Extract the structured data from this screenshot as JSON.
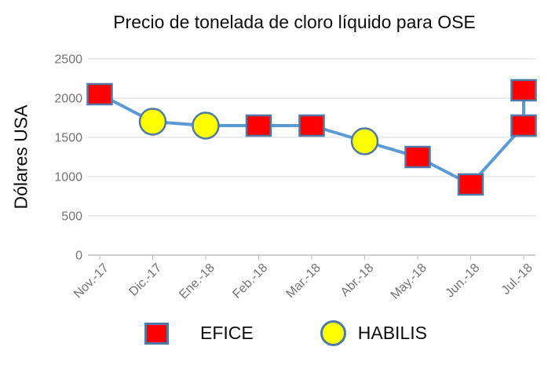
{
  "chart_data": {
    "type": "line",
    "title": "Precio de tonelada de cloro líquido para OSE",
    "ylabel": "Dólares USA",
    "xlabel": "",
    "ylim": [
      0,
      2500
    ],
    "yticks": [
      0,
      500,
      1000,
      1500,
      2000,
      2500
    ],
    "categories": [
      "Nov.-17",
      "Dic.-17",
      "Ene.-18",
      "Feb.-18",
      "Mar.-18",
      "Abr.-18",
      "May.-18",
      "Jun.-18",
      "Jul.-18"
    ],
    "grid": true,
    "legend_position": "bottom",
    "points": [
      {
        "category": "Nov.-17",
        "value": 2050,
        "supplier": "EFICE"
      },
      {
        "category": "Dic.-17",
        "value": 1700,
        "supplier": "HABILIS"
      },
      {
        "category": "Ene.-18",
        "value": 1650,
        "supplier": "HABILIS"
      },
      {
        "category": "Feb.-18",
        "value": 1650,
        "supplier": "EFICE"
      },
      {
        "category": "Mar.-18",
        "value": 1650,
        "supplier": "EFICE"
      },
      {
        "category": "Abr.-18",
        "value": 1450,
        "supplier": "HABILIS"
      },
      {
        "category": "May.-18",
        "value": 1250,
        "supplier": "EFICE"
      },
      {
        "category": "Jun.-18",
        "value": 900,
        "supplier": "EFICE"
      },
      {
        "category": "Jul.-18",
        "value": 1650,
        "supplier": "EFICE"
      },
      {
        "category": "Jul.-18",
        "value": 2100,
        "supplier": "EFICE"
      }
    ],
    "legend": [
      {
        "label": "EFICE",
        "marker": "square",
        "fill": "#FE0000",
        "stroke": "#4F7AA6"
      },
      {
        "label": "HABILIS",
        "marker": "circle",
        "fill": "#FFFF00",
        "stroke": "#4F7AA6"
      }
    ],
    "colors": {
      "line": "#5B9BD5",
      "gridline": "#D9D9D9",
      "axis_line": "#BFBFBF",
      "tick_text": "#737373",
      "title_text": "#0d0d0d"
    }
  }
}
